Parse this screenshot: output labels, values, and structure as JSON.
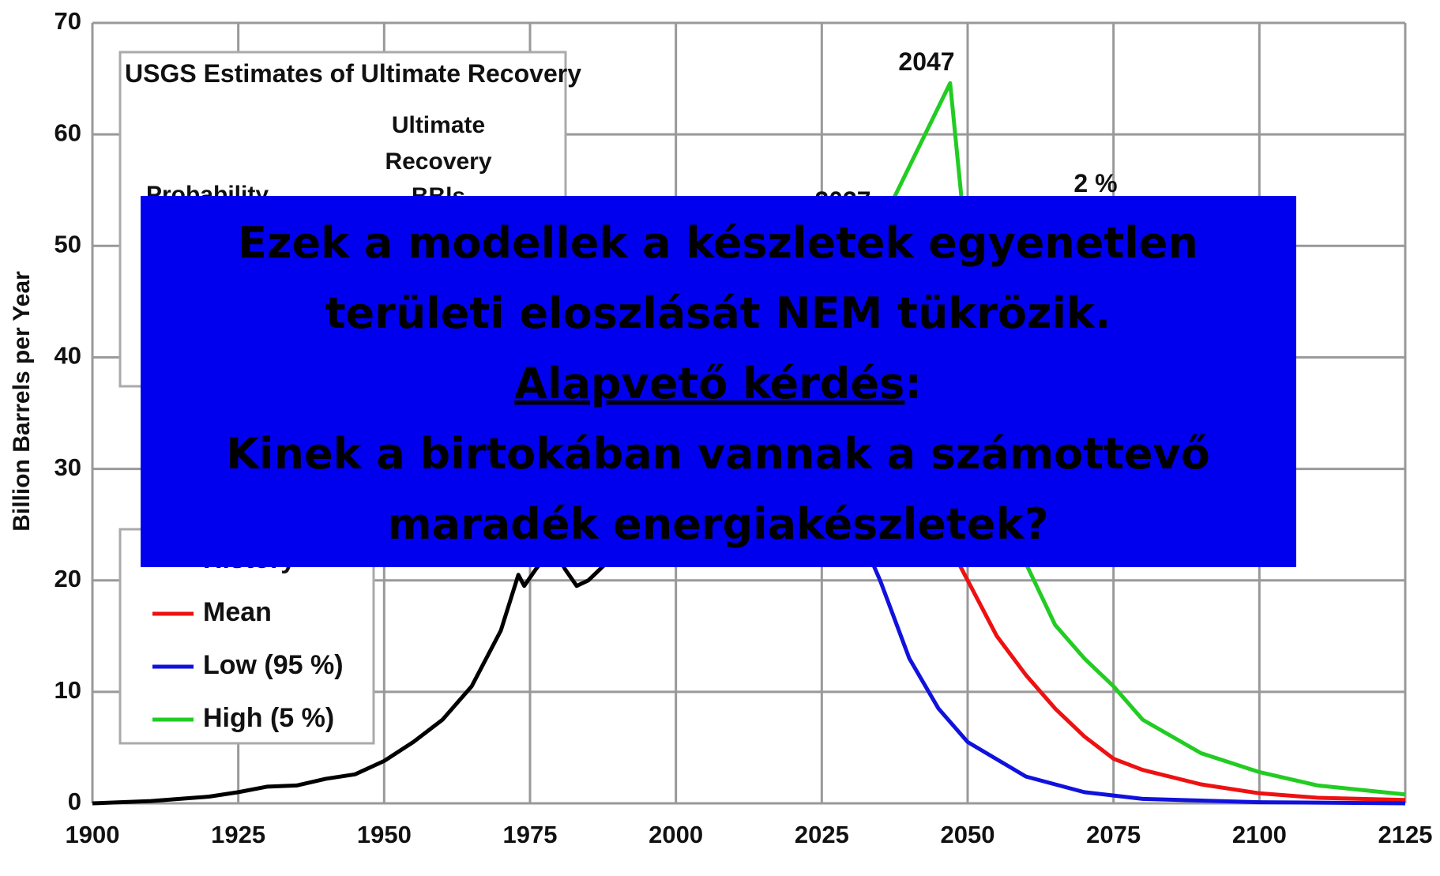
{
  "chart_data": {
    "type": "line",
    "ylabel": "Billion Barrels per Year",
    "xlim": [
      1900,
      2125
    ],
    "xticks": [
      1900,
      1925,
      1950,
      1975,
      2000,
      2025,
      2050,
      2075,
      2100,
      2125
    ],
    "ylim": [
      0,
      70
    ],
    "yticks": [
      0,
      10,
      20,
      30,
      40,
      50,
      60,
      70
    ],
    "grid": true,
    "series": [
      {
        "name": "History",
        "color": "#000000",
        "x": [
          1900,
          1910,
          1920,
          1925,
          1930,
          1935,
          1940,
          1945,
          1950,
          1955,
          1960,
          1965,
          1970,
          1973,
          1974,
          1976,
          1979,
          1981,
          1983,
          1985,
          1988,
          1995,
          2000
        ],
        "values": [
          0,
          0.2,
          0.6,
          1,
          1.5,
          1.6,
          2.2,
          2.6,
          3.8,
          5.5,
          7.5,
          10.5,
          15.5,
          20.5,
          19.5,
          21,
          23,
          21,
          19.5,
          20,
          21.5,
          24,
          26
        ]
      },
      {
        "name": "Mean",
        "color": "#ee1111",
        "x": [
          2000,
          2010,
          2020,
          2030,
          2037,
          2040,
          2045,
          2050,
          2055,
          2060,
          2065,
          2070,
          2075,
          2080,
          2090,
          2100,
          2110,
          2125
        ],
        "values": [
          26,
          31.7,
          38.6,
          47,
          53.9,
          33,
          25,
          20,
          15,
          11.5,
          8.5,
          6,
          4,
          3,
          1.7,
          0.9,
          0.5,
          0.3
        ]
      },
      {
        "name": "Low (95 %)",
        "color": "#1111dd",
        "x": [
          2000,
          2010,
          2021,
          2025,
          2030,
          2035,
          2040,
          2045,
          2050,
          2060,
          2070,
          2075,
          2080,
          2100,
          2125
        ],
        "values": [
          26,
          31.7,
          39.4,
          33,
          26,
          20,
          13,
          8.5,
          5.5,
          2.4,
          1,
          0.7,
          0.4,
          0.1,
          0
        ]
      },
      {
        "name": "High (5 %)",
        "color": "#22cc22",
        "x": [
          2000,
          2010,
          2020,
          2030,
          2037,
          2047,
          2049,
          2055,
          2060,
          2065,
          2070,
          2075,
          2080,
          2090,
          2100,
          2110,
          2125
        ],
        "values": [
          26,
          31.7,
          38.6,
          47,
          53.9,
          64.6,
          54,
          31,
          21.5,
          16,
          13,
          10.5,
          7.5,
          4.5,
          2.8,
          1.6,
          0.8
        ]
      }
    ],
    "annotations": {
      "peak_high": "2047",
      "peak_mean": "2037",
      "growth": "2 %"
    },
    "info_box": {
      "title": "USGS Estimates of Ultimate Recovery",
      "col1": "Probability",
      "col2": [
        "Ultimate",
        "Recovery",
        "BBls"
      ]
    }
  },
  "overlay": {
    "line1": "Ezek a modellek a készletek egyenetlen",
    "line2": "területi eloszlását NEM tükrözik.",
    "question": "Alapvető kérdés",
    "colon": ":",
    "line4": "Kinek a birtokában vannak a számottevő",
    "line5": "maradék energiakészletek?"
  }
}
